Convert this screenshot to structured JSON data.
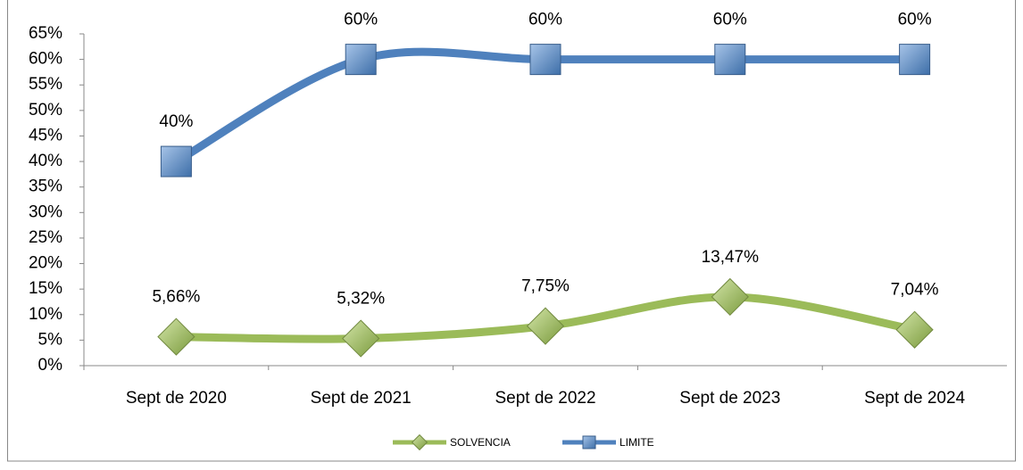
{
  "chart_data": {
    "type": "line",
    "categories": [
      "Sept de 2020",
      "Sept de 2021",
      "Sept de 2022",
      "Sept de 2023",
      "Sept de 2024"
    ],
    "series": [
      {
        "name": "SOLVENCIA",
        "color": "#9bbb59",
        "marker": "diamond",
        "values": [
          5.66,
          5.32,
          7.75,
          13.47,
          7.04
        ],
        "value_labels": [
          "5,66%",
          "5,32%",
          "7,75%",
          "13,47%",
          "7,04%"
        ]
      },
      {
        "name": "LIMITE",
        "color": "#4f81bd",
        "marker": "square",
        "values": [
          40,
          60,
          60,
          60,
          60
        ],
        "value_labels": [
          "40%",
          "60%",
          "60%",
          "60%",
          "60%"
        ]
      }
    ],
    "ylim": [
      0,
      65
    ],
    "yticks": [
      {
        "value": 0,
        "label": "0%"
      },
      {
        "value": 5,
        "label": "5%"
      },
      {
        "value": 10,
        "label": "10%"
      },
      {
        "value": 15,
        "label": "15%"
      },
      {
        "value": 20,
        "label": "20%"
      },
      {
        "value": 25,
        "label": "25%"
      },
      {
        "value": 30,
        "label": "30%"
      },
      {
        "value": 35,
        "label": "35%"
      },
      {
        "value": 40,
        "label": "40%"
      },
      {
        "value": 45,
        "label": "45%"
      },
      {
        "value": 50,
        "label": "50%"
      },
      {
        "value": 55,
        "label": "55%"
      },
      {
        "value": 60,
        "label": "60%"
      },
      {
        "value": 65,
        "label": "65%"
      }
    ],
    "smooth": true,
    "grid": false,
    "legend": "bottom"
  }
}
